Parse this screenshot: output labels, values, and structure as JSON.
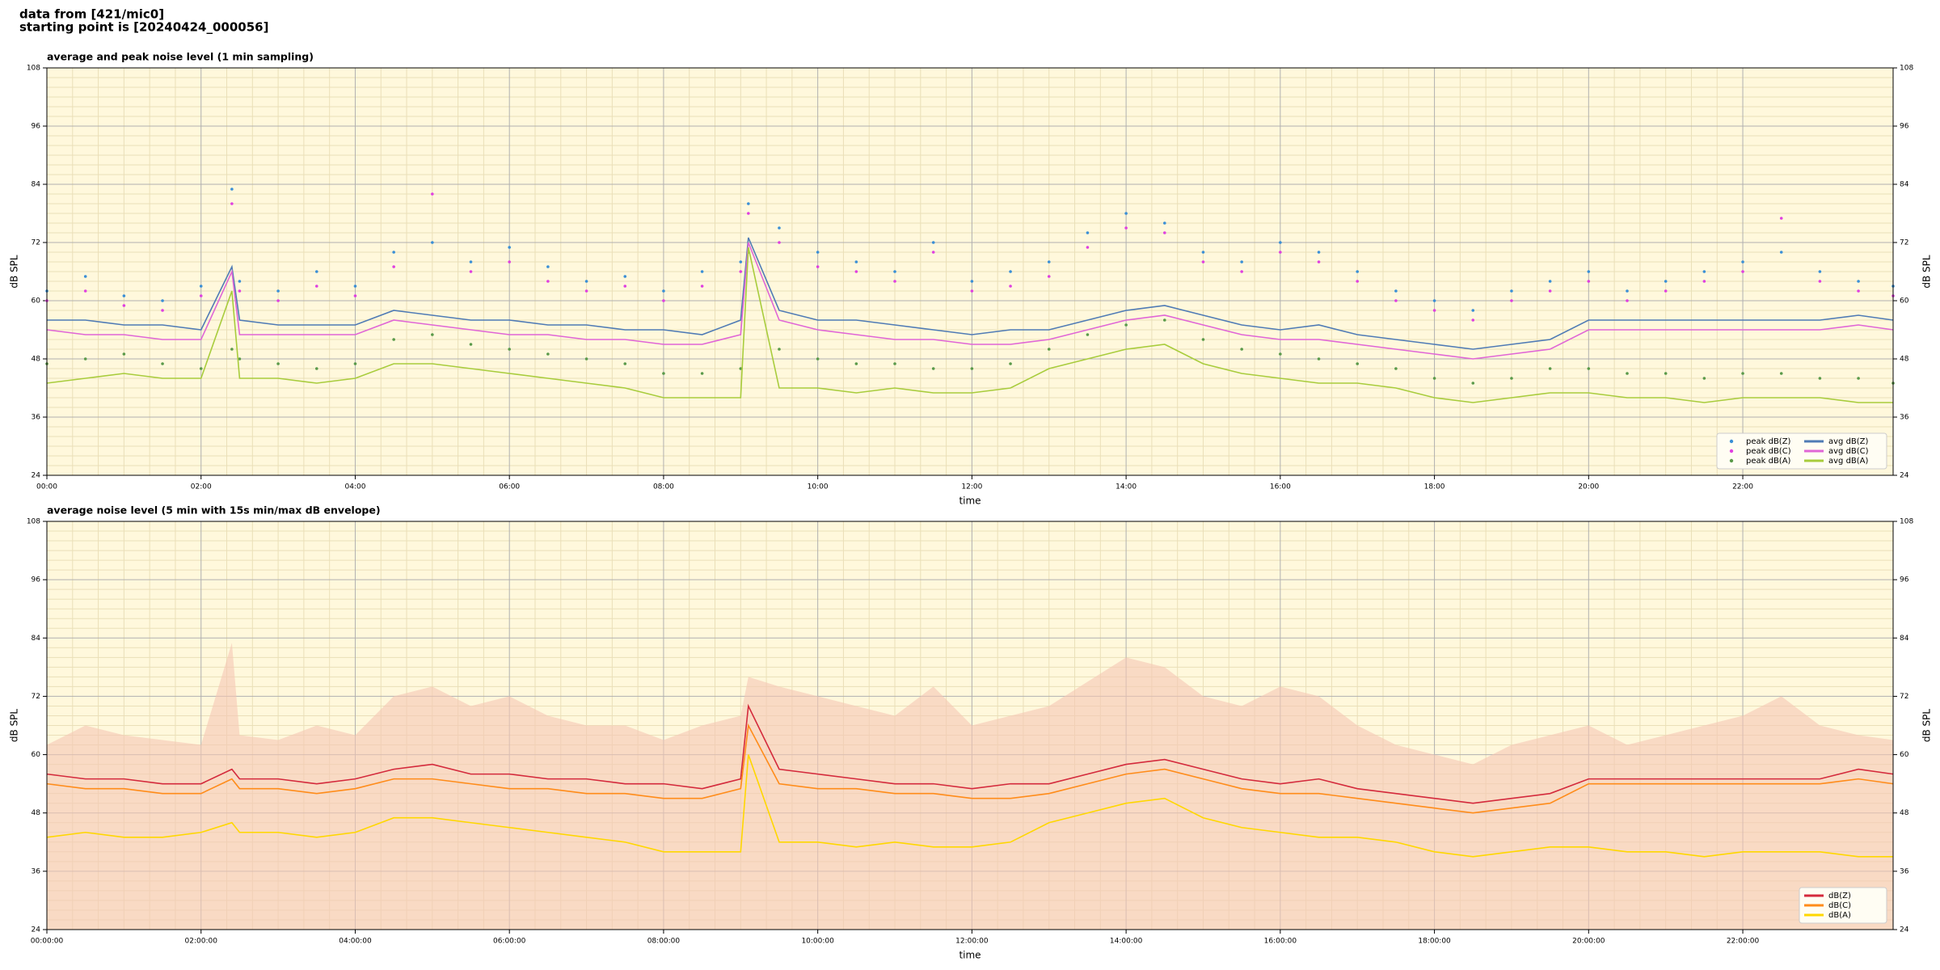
{
  "header": {
    "line1": "data from [421/mic0]",
    "line2": "starting point is [20240424_000056]"
  },
  "chart_data": [
    {
      "type": "line",
      "title": "average and peak noise level (1 min sampling)",
      "xlabel": "time",
      "ylabel": "dB SPL",
      "xlim": [
        0,
        23.95
      ],
      "ylim": [
        24,
        108
      ],
      "yticks": [
        24,
        36,
        48,
        60,
        72,
        84,
        96,
        108
      ],
      "xticks": [
        {
          "value": 0,
          "label": "00:00"
        },
        {
          "value": 2,
          "label": "02:00"
        },
        {
          "value": 4,
          "label": "04:00"
        },
        {
          "value": 6,
          "label": "06:00"
        },
        {
          "value": 8,
          "label": "08:00"
        },
        {
          "value": 10,
          "label": "10:00"
        },
        {
          "value": 12,
          "label": "12:00"
        },
        {
          "value": 14,
          "label": "14:00"
        },
        {
          "value": 16,
          "label": "16:00"
        },
        {
          "value": 18,
          "label": "18:00"
        },
        {
          "value": 20,
          "label": "20:00"
        },
        {
          "value": 22,
          "label": "22:00"
        }
      ],
      "grid": true,
      "minor_grid": true,
      "legend": "lower right",
      "legend_columns": 2,
      "x": [
        0,
        0.5,
        1,
        1.5,
        2,
        2.4,
        2.5,
        3,
        3.5,
        4,
        4.5,
        5,
        5.5,
        6,
        6.5,
        7,
        7.5,
        8,
        8.5,
        9,
        9.1,
        9.5,
        10,
        10.5,
        11,
        11.5,
        12,
        12.5,
        13,
        13.5,
        14,
        14.5,
        15,
        15.5,
        16,
        16.5,
        17,
        17.5,
        18,
        18.5,
        19,
        19.5,
        20,
        20.5,
        21,
        21.5,
        22,
        22.5,
        23,
        23.5,
        23.95
      ],
      "series": [
        {
          "name": "peak dB(Z)",
          "style": "scatter",
          "color": "#3a8fd6",
          "values": [
            62,
            65,
            61,
            60,
            63,
            83,
            64,
            62,
            66,
            63,
            70,
            72,
            68,
            71,
            67,
            64,
            65,
            62,
            66,
            68,
            80,
            75,
            70,
            68,
            66,
            72,
            64,
            66,
            68,
            74,
            78,
            76,
            70,
            68,
            72,
            70,
            66,
            62,
            60,
            58,
            62,
            64,
            66,
            62,
            64,
            66,
            68,
            70,
            66,
            64,
            63
          ]
        },
        {
          "name": "peak dB(C)",
          "style": "scatter",
          "color": "#e040e0",
          "values": [
            60,
            62,
            59,
            58,
            61,
            80,
            62,
            60,
            63,
            61,
            67,
            82,
            66,
            68,
            64,
            62,
            63,
            60,
            63,
            66,
            78,
            72,
            67,
            66,
            64,
            70,
            62,
            63,
            65,
            71,
            75,
            74,
            68,
            66,
            70,
            68,
            64,
            60,
            58,
            56,
            60,
            62,
            64,
            60,
            62,
            64,
            66,
            77,
            64,
            62,
            61
          ]
        },
        {
          "name": "peak dB(A)",
          "style": "scatter",
          "color": "#5a9a4a",
          "values": [
            47,
            48,
            49,
            47,
            46,
            50,
            48,
            47,
            46,
            47,
            52,
            53,
            51,
            50,
            49,
            48,
            47,
            45,
            45,
            46,
            70,
            50,
            48,
            47,
            47,
            46,
            46,
            47,
            50,
            53,
            55,
            56,
            52,
            50,
            49,
            48,
            47,
            46,
            44,
            43,
            44,
            46,
            46,
            45,
            45,
            44,
            45,
            45,
            44,
            44,
            43
          ]
        },
        {
          "name": "avg dB(Z)",
          "style": "line",
          "color": "#4f7bb5",
          "values": [
            56,
            56,
            55,
            55,
            54,
            67,
            56,
            55,
            55,
            55,
            58,
            57,
            56,
            56,
            55,
            55,
            54,
            54,
            53,
            56,
            73,
            58,
            56,
            56,
            55,
            54,
            53,
            54,
            54,
            56,
            58,
            59,
            57,
            55,
            54,
            55,
            53,
            52,
            51,
            50,
            51,
            52,
            56,
            56,
            56,
            56,
            56,
            56,
            56,
            57,
            56
          ]
        },
        {
          "name": "avg dB(C)",
          "style": "line",
          "color": "#e066d6",
          "values": [
            54,
            53,
            53,
            52,
            52,
            66,
            53,
            53,
            53,
            53,
            56,
            55,
            54,
            53,
            53,
            52,
            52,
            51,
            51,
            53,
            72,
            56,
            54,
            53,
            52,
            52,
            51,
            51,
            52,
            54,
            56,
            57,
            55,
            53,
            52,
            52,
            51,
            50,
            49,
            48,
            49,
            50,
            54,
            54,
            54,
            54,
            54,
            54,
            54,
            55,
            54
          ]
        },
        {
          "name": "avg dB(A)",
          "style": "line",
          "color": "#a8cc3c",
          "values": [
            43,
            44,
            45,
            44,
            44,
            62,
            44,
            44,
            43,
            44,
            47,
            47,
            46,
            45,
            44,
            43,
            42,
            40,
            40,
            40,
            71,
            42,
            42,
            41,
            42,
            41,
            41,
            42,
            46,
            48,
            50,
            51,
            47,
            45,
            44,
            43,
            43,
            42,
            40,
            39,
            40,
            41,
            41,
            40,
            40,
            39,
            40,
            40,
            40,
            39,
            39
          ]
        }
      ]
    },
    {
      "type": "line",
      "title": "average noise level (5 min with 15s min/max dB envelope)",
      "xlabel": "time",
      "ylabel": "dB SPL",
      "xlim": [
        0,
        23.95
      ],
      "ylim": [
        24,
        108
      ],
      "yticks": [
        24,
        36,
        48,
        60,
        72,
        84,
        96,
        108
      ],
      "xticks": [
        {
          "value": 0,
          "label": "00:00:00"
        },
        {
          "value": 2,
          "label": "02:00:00"
        },
        {
          "value": 4,
          "label": "04:00:00"
        },
        {
          "value": 6,
          "label": "06:00:00"
        },
        {
          "value": 8,
          "label": "08:00:00"
        },
        {
          "value": 10,
          "label": "10:00:00"
        },
        {
          "value": 12,
          "label": "12:00:00"
        },
        {
          "value": 14,
          "label": "14:00:00"
        },
        {
          "value": 16,
          "label": "16:00:00"
        },
        {
          "value": 18,
          "label": "18:00:00"
        },
        {
          "value": 20,
          "label": "20:00:00"
        },
        {
          "value": 22,
          "label": "22:00:00"
        }
      ],
      "grid": true,
      "minor_grid": true,
      "legend": "lower right",
      "legend_columns": 1,
      "x": [
        0,
        0.5,
        1,
        1.5,
        2,
        2.4,
        2.5,
        3,
        3.5,
        4,
        4.5,
        5,
        5.5,
        6,
        6.5,
        7,
        7.5,
        8,
        8.5,
        9,
        9.1,
        9.5,
        10,
        10.5,
        11,
        11.5,
        12,
        12.5,
        13,
        13.5,
        14,
        14.5,
        15,
        15.5,
        16,
        16.5,
        17,
        17.5,
        18,
        18.5,
        19,
        19.5,
        20,
        20.5,
        21,
        21.5,
        22,
        22.5,
        23,
        23.5,
        23.95
      ],
      "envelope": {
        "color": "#f5c6b4",
        "values": [
          62,
          66,
          64,
          63,
          62,
          83,
          64,
          63,
          66,
          64,
          72,
          74,
          70,
          72,
          68,
          66,
          66,
          63,
          66,
          68,
          76,
          74,
          72,
          70,
          68,
          74,
          66,
          68,
          70,
          75,
          80,
          78,
          72,
          70,
          74,
          72,
          66,
          62,
          60,
          58,
          62,
          64,
          66,
          62,
          64,
          66,
          68,
          72,
          66,
          64,
          63
        ]
      },
      "series": [
        {
          "name": "dB(Z)",
          "style": "line",
          "color": "#d42a3c",
          "values": [
            56,
            55,
            55,
            54,
            54,
            57,
            55,
            55,
            54,
            55,
            57,
            58,
            56,
            56,
            55,
            55,
            54,
            54,
            53,
            55,
            70,
            57,
            56,
            55,
            54,
            54,
            53,
            54,
            54,
            56,
            58,
            59,
            57,
            55,
            54,
            55,
            53,
            52,
            51,
            50,
            51,
            52,
            55,
            55,
            55,
            55,
            55,
            55,
            55,
            57,
            56
          ]
        },
        {
          "name": "dB(C)",
          "style": "line",
          "color": "#ff8c1a",
          "values": [
            54,
            53,
            53,
            52,
            52,
            55,
            53,
            53,
            52,
            53,
            55,
            55,
            54,
            53,
            53,
            52,
            52,
            51,
            51,
            53,
            66,
            54,
            53,
            53,
            52,
            52,
            51,
            51,
            52,
            54,
            56,
            57,
            55,
            53,
            52,
            52,
            51,
            50,
            49,
            48,
            49,
            50,
            54,
            54,
            54,
            54,
            54,
            54,
            54,
            55,
            54
          ]
        },
        {
          "name": "dB(A)",
          "style": "line",
          "color": "#ffd700",
          "values": [
            43,
            44,
            43,
            43,
            44,
            46,
            44,
            44,
            43,
            44,
            47,
            47,
            46,
            45,
            44,
            43,
            42,
            40,
            40,
            40,
            60,
            42,
            42,
            41,
            42,
            41,
            41,
            42,
            46,
            48,
            50,
            51,
            47,
            45,
            44,
            43,
            43,
            42,
            40,
            39,
            40,
            41,
            41,
            40,
            40,
            39,
            40,
            40,
            40,
            39,
            39
          ]
        }
      ]
    }
  ]
}
